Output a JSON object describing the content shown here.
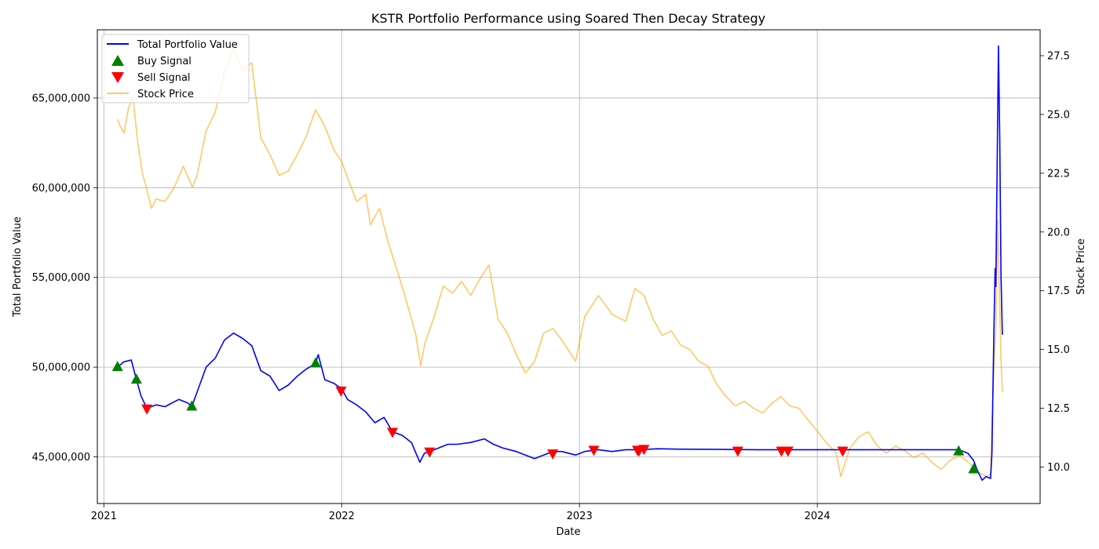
{
  "chart_data": {
    "type": "line",
    "title": "KSTR Portfolio Performance using Soared Then Decay Strategy",
    "xlabel": "Date",
    "ylabel": "Total Portfolio Value",
    "y2label": "Stock Price",
    "grid": true,
    "legend_position": "top-left",
    "xlim": [
      "2020-12-22",
      "2024-12-08"
    ],
    "ylim": [
      42400000,
      68800000
    ],
    "y2lim": [
      8.45,
      28.6
    ],
    "x_ticks": [
      {
        "date": "2021-01-01",
        "label": "2021"
      },
      {
        "date": "2022-01-01",
        "label": "2022"
      },
      {
        "date": "2023-01-01",
        "label": "2023"
      },
      {
        "date": "2024-01-01",
        "label": "2024"
      }
    ],
    "y_ticks": [
      {
        "value": 45000000,
        "label": "45,000,000"
      },
      {
        "value": 50000000,
        "label": "50,000,000"
      },
      {
        "value": 55000000,
        "label": "55,000,000"
      },
      {
        "value": 60000000,
        "label": "60,000,000"
      },
      {
        "value": 65000000,
        "label": "65,000,000"
      }
    ],
    "y2_ticks": [
      {
        "value": 10.0,
        "label": "10.0"
      },
      {
        "value": 12.5,
        "label": "12.5"
      },
      {
        "value": 15.0,
        "label": "15.0"
      },
      {
        "value": 17.5,
        "label": "17.5"
      },
      {
        "value": 20.0,
        "label": "20.0"
      },
      {
        "value": 22.5,
        "label": "22.5"
      },
      {
        "value": 25.0,
        "label": "25.0"
      },
      {
        "value": 27.5,
        "label": "27.5"
      }
    ],
    "series": [
      {
        "name": "Total Portfolio Value",
        "axis": "left",
        "color": "#0000ff",
        "points": [
          [
            "2021-01-22",
            50000000
          ],
          [
            "2021-02-01",
            50300000
          ],
          [
            "2021-02-12",
            50400000
          ],
          [
            "2021-02-20",
            49300000
          ],
          [
            "2021-02-27",
            48400000
          ],
          [
            "2021-03-08",
            47700000
          ],
          [
            "2021-03-22",
            47900000
          ],
          [
            "2021-04-05",
            47800000
          ],
          [
            "2021-04-26",
            48200000
          ],
          [
            "2021-05-10",
            48000000
          ],
          [
            "2021-05-16",
            47800000
          ],
          [
            "2021-05-25",
            48700000
          ],
          [
            "2021-06-07",
            50000000
          ],
          [
            "2021-06-21",
            50500000
          ],
          [
            "2021-07-05",
            51500000
          ],
          [
            "2021-07-19",
            51900000
          ],
          [
            "2021-08-02",
            51600000
          ],
          [
            "2021-08-16",
            51200000
          ],
          [
            "2021-08-30",
            49800000
          ],
          [
            "2021-09-13",
            49500000
          ],
          [
            "2021-09-27",
            48700000
          ],
          [
            "2021-10-11",
            49000000
          ],
          [
            "2021-10-25",
            49500000
          ],
          [
            "2021-11-08",
            49900000
          ],
          [
            "2021-11-22",
            50200000
          ],
          [
            "2021-11-26",
            50700000
          ],
          [
            "2021-12-06",
            49300000
          ],
          [
            "2021-12-20",
            49100000
          ],
          [
            "2022-01-01",
            48800000
          ],
          [
            "2022-01-10",
            48200000
          ],
          [
            "2022-01-24",
            47900000
          ],
          [
            "2022-02-07",
            47500000
          ],
          [
            "2022-02-21",
            46900000
          ],
          [
            "2022-03-07",
            47200000
          ],
          [
            "2022-03-20",
            46400000
          ],
          [
            "2022-04-04",
            46200000
          ],
          [
            "2022-04-18",
            45800000
          ],
          [
            "2022-05-01",
            44700000
          ],
          [
            "2022-05-08",
            45200000
          ],
          [
            "2022-05-16",
            45300000
          ],
          [
            "2022-05-30",
            45500000
          ],
          [
            "2022-06-13",
            45700000
          ],
          [
            "2022-06-27",
            45700000
          ],
          [
            "2022-07-18",
            45800000
          ],
          [
            "2022-08-08",
            46000000
          ],
          [
            "2022-08-22",
            45700000
          ],
          [
            "2022-09-05",
            45500000
          ],
          [
            "2022-09-26",
            45300000
          ],
          [
            "2022-10-10",
            45100000
          ],
          [
            "2022-10-24",
            44900000
          ],
          [
            "2022-11-07",
            45100000
          ],
          [
            "2022-11-21",
            45300000
          ],
          [
            "2022-12-05",
            45300000
          ],
          [
            "2022-12-26",
            45100000
          ],
          [
            "2023-01-09",
            45300000
          ],
          [
            "2023-01-30",
            45400000
          ],
          [
            "2023-02-20",
            45300000
          ],
          [
            "2023-03-13",
            45400000
          ],
          [
            "2023-04-03",
            45400000
          ],
          [
            "2023-05-01",
            45450000
          ],
          [
            "2023-06-01",
            45430000
          ],
          [
            "2023-08-01",
            45420000
          ],
          [
            "2023-10-02",
            45400000
          ],
          [
            "2024-01-02",
            45400000
          ],
          [
            "2024-04-01",
            45400000
          ],
          [
            "2024-07-01",
            45400000
          ],
          [
            "2024-08-05",
            45400000
          ],
          [
            "2024-08-19",
            45200000
          ],
          [
            "2024-08-28",
            44800000
          ],
          [
            "2024-09-02",
            44300000
          ],
          [
            "2024-09-06",
            44000000
          ],
          [
            "2024-09-10",
            43700000
          ],
          [
            "2024-09-16",
            43900000
          ],
          [
            "2024-09-23",
            43800000
          ],
          [
            "2024-09-25",
            45200000
          ],
          [
            "2024-09-28",
            52000000
          ],
          [
            "2024-09-30",
            55500000
          ],
          [
            "2024-10-01",
            54500000
          ],
          [
            "2024-10-03",
            61000000
          ],
          [
            "2024-10-05",
            67900000
          ],
          [
            "2024-10-07",
            63000000
          ],
          [
            "2024-10-09",
            55000000
          ],
          [
            "2024-10-11",
            51800000
          ]
        ]
      },
      {
        "name": "Stock Price",
        "axis": "right",
        "color": "#ffa500",
        "opacity": 0.6,
        "points": [
          [
            "2021-01-22",
            24.8
          ],
          [
            "2021-01-26",
            24.5
          ],
          [
            "2021-02-01",
            24.2
          ],
          [
            "2021-02-08",
            25.3
          ],
          [
            "2021-02-15",
            25.7
          ],
          [
            "2021-02-22",
            23.8
          ],
          [
            "2021-03-01",
            22.5
          ],
          [
            "2021-03-08",
            21.8
          ],
          [
            "2021-03-15",
            21.0
          ],
          [
            "2021-03-22",
            21.4
          ],
          [
            "2021-04-05",
            21.3
          ],
          [
            "2021-04-19",
            21.9
          ],
          [
            "2021-05-03",
            22.8
          ],
          [
            "2021-05-17",
            21.9
          ],
          [
            "2021-05-24",
            22.4
          ],
          [
            "2021-06-07",
            24.3
          ],
          [
            "2021-06-21",
            25.1
          ],
          [
            "2021-07-05",
            26.8
          ],
          [
            "2021-07-19",
            27.8
          ],
          [
            "2021-08-02",
            26.9
          ],
          [
            "2021-08-16",
            27.2
          ],
          [
            "2021-08-30",
            24.0
          ],
          [
            "2021-09-13",
            23.3
          ],
          [
            "2021-09-27",
            22.4
          ],
          [
            "2021-10-11",
            22.6
          ],
          [
            "2021-10-25",
            23.3
          ],
          [
            "2021-11-08",
            24.1
          ],
          [
            "2021-11-22",
            25.2
          ],
          [
            "2021-12-06",
            24.5
          ],
          [
            "2021-12-20",
            23.5
          ],
          [
            "2022-01-01",
            23.0
          ],
          [
            "2022-01-10",
            22.3
          ],
          [
            "2022-01-24",
            21.3
          ],
          [
            "2022-02-07",
            21.6
          ],
          [
            "2022-02-14",
            20.3
          ],
          [
            "2022-02-28",
            21.0
          ],
          [
            "2022-03-14",
            19.5
          ],
          [
            "2022-03-28",
            18.3
          ],
          [
            "2022-04-11",
            17.0
          ],
          [
            "2022-04-25",
            15.6
          ],
          [
            "2022-05-02",
            14.3
          ],
          [
            "2022-05-09",
            15.3
          ],
          [
            "2022-05-23",
            16.4
          ],
          [
            "2022-06-06",
            17.7
          ],
          [
            "2022-06-20",
            17.4
          ],
          [
            "2022-07-04",
            17.9
          ],
          [
            "2022-07-18",
            17.3
          ],
          [
            "2022-08-01",
            18.0
          ],
          [
            "2022-08-15",
            18.6
          ],
          [
            "2022-08-29",
            16.3
          ],
          [
            "2022-09-12",
            15.7
          ],
          [
            "2022-09-26",
            14.8
          ],
          [
            "2022-10-10",
            14.0
          ],
          [
            "2022-10-24",
            14.5
          ],
          [
            "2022-11-07",
            15.7
          ],
          [
            "2022-11-21",
            15.9
          ],
          [
            "2022-12-05",
            15.4
          ],
          [
            "2022-12-26",
            14.5
          ],
          [
            "2023-01-09",
            16.4
          ],
          [
            "2023-01-30",
            17.3
          ],
          [
            "2023-02-20",
            16.5
          ],
          [
            "2023-03-13",
            16.2
          ],
          [
            "2023-03-27",
            17.6
          ],
          [
            "2023-04-10",
            17.3
          ],
          [
            "2023-04-24",
            16.3
          ],
          [
            "2023-05-08",
            15.6
          ],
          [
            "2023-05-22",
            15.8
          ],
          [
            "2023-06-05",
            15.2
          ],
          [
            "2023-06-19",
            15.0
          ],
          [
            "2023-07-03",
            14.5
          ],
          [
            "2023-07-17",
            14.3
          ],
          [
            "2023-07-31",
            13.5
          ],
          [
            "2023-08-14",
            13.0
          ],
          [
            "2023-08-28",
            12.6
          ],
          [
            "2023-09-11",
            12.8
          ],
          [
            "2023-09-25",
            12.5
          ],
          [
            "2023-10-09",
            12.3
          ],
          [
            "2023-10-23",
            12.7
          ],
          [
            "2023-11-06",
            13.0
          ],
          [
            "2023-11-20",
            12.6
          ],
          [
            "2023-12-04",
            12.5
          ],
          [
            "2023-12-18",
            12.0
          ],
          [
            "2024-01-02",
            11.5
          ],
          [
            "2024-01-16",
            11.0
          ],
          [
            "2024-01-30",
            10.6
          ],
          [
            "2024-02-06",
            9.6
          ],
          [
            "2024-02-20",
            10.8
          ],
          [
            "2024-03-05",
            11.3
          ],
          [
            "2024-03-19",
            11.5
          ],
          [
            "2024-04-02",
            10.9
          ],
          [
            "2024-04-16",
            10.6
          ],
          [
            "2024-04-30",
            10.9
          ],
          [
            "2024-05-14",
            10.7
          ],
          [
            "2024-05-28",
            10.4
          ],
          [
            "2024-06-11",
            10.6
          ],
          [
            "2024-06-25",
            10.2
          ],
          [
            "2024-07-09",
            9.9
          ],
          [
            "2024-07-23",
            10.3
          ],
          [
            "2024-08-06",
            10.5
          ],
          [
            "2024-08-20",
            10.2
          ],
          [
            "2024-09-03",
            9.8
          ],
          [
            "2024-09-17",
            9.6
          ],
          [
            "2024-09-23",
            9.7
          ],
          [
            "2024-09-27",
            13.5
          ],
          [
            "2024-10-01",
            16.0
          ],
          [
            "2024-10-04",
            20.5
          ],
          [
            "2024-10-06",
            18.0
          ],
          [
            "2024-10-09",
            14.5
          ],
          [
            "2024-10-11",
            13.2
          ]
        ]
      }
    ],
    "buy_signals": {
      "name": "Buy Signal",
      "color": "#008000",
      "marker": "triangle-up",
      "points": [
        [
          "2021-01-22",
          50000000
        ],
        [
          "2021-02-20",
          49300000
        ],
        [
          "2021-05-16",
          47800000
        ],
        [
          "2021-11-22",
          50200000
        ],
        [
          "2024-08-05",
          45300000
        ],
        [
          "2024-08-28",
          44300000
        ]
      ]
    },
    "sell_signals": {
      "name": "Sell Signal",
      "color": "#ff0000",
      "marker": "triangle-down",
      "points": [
        [
          "2021-03-08",
          47700000
        ],
        [
          "2021-12-31",
          48700000
        ],
        [
          "2022-03-20",
          46400000
        ],
        [
          "2022-05-16",
          45300000
        ],
        [
          "2022-11-21",
          45200000
        ],
        [
          "2023-01-23",
          45400000
        ],
        [
          "2023-03-31",
          45400000
        ],
        [
          "2023-04-02",
          45350000
        ],
        [
          "2023-04-10",
          45450000
        ],
        [
          "2023-09-01",
          45350000
        ],
        [
          "2023-11-07",
          45350000
        ],
        [
          "2023-11-17",
          45350000
        ],
        [
          "2024-02-09",
          45350000
        ]
      ]
    }
  }
}
